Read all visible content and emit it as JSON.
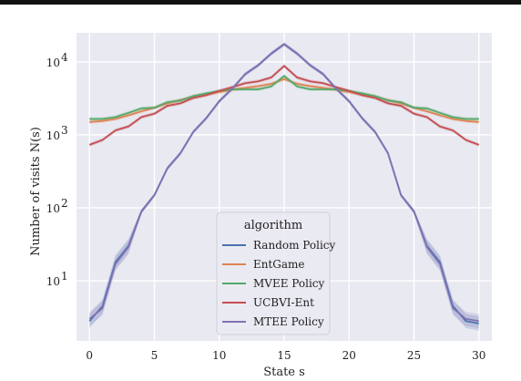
{
  "chart_data": {
    "type": "line",
    "xlabel": "State s",
    "ylabel": "Number of visits N(s)",
    "xlim": [
      -1,
      31
    ],
    "ylim": [
      1.5,
      25000
    ],
    "yscale": "log",
    "xticks": [
      0,
      5,
      10,
      15,
      20,
      25,
      30
    ],
    "yticks": [
      {
        "value": 10,
        "base": "10",
        "exp": "1"
      },
      {
        "value": 100,
        "base": "10",
        "exp": "2"
      },
      {
        "value": 1000,
        "base": "10",
        "exp": "3"
      },
      {
        "value": 10000,
        "base": "10",
        "exp": "4"
      }
    ],
    "grid": true,
    "background": "#e9e9f2",
    "legend": {
      "title": "algorithm",
      "placement": "lower-center"
    },
    "x": [
      0,
      1,
      2,
      3,
      4,
      5,
      6,
      7,
      8,
      9,
      10,
      11,
      12,
      13,
      14,
      15,
      16,
      17,
      18,
      19,
      20,
      21,
      22,
      23,
      24,
      25,
      26,
      27,
      28,
      29,
      30
    ],
    "series": [
      {
        "name": "Random Policy",
        "color": "#4c72b0",
        "values": [
          2.8,
          4.5,
          18,
          30,
          90,
          150,
          350,
          560,
          1100,
          1700,
          2900,
          4300,
          6800,
          9000,
          13000,
          17500,
          13000,
          9000,
          6800,
          4300,
          2900,
          1700,
          1100,
          560,
          150,
          90,
          30,
          18,
          4.5,
          2.8,
          2.6
        ]
      },
      {
        "name": "EntGame",
        "color": "#dd8452",
        "values": [
          1500,
          1550,
          1650,
          1850,
          2100,
          2350,
          2700,
          3000,
          3300,
          3550,
          3850,
          4150,
          4400,
          4650,
          5000,
          5800,
          5000,
          4650,
          4400,
          4150,
          3850,
          3550,
          3300,
          3000,
          2700,
          2350,
          2100,
          1850,
          1650,
          1550,
          1500
        ]
      },
      {
        "name": "MVEE Policy",
        "color": "#55a868",
        "values": [
          1650,
          1650,
          1750,
          2000,
          2300,
          2350,
          2800,
          2950,
          3400,
          3700,
          4000,
          4200,
          4200,
          4200,
          4600,
          6400,
          4600,
          4200,
          4200,
          4200,
          4000,
          3700,
          3400,
          2950,
          2800,
          2350,
          2300,
          2000,
          1750,
          1650,
          1650
        ]
      },
      {
        "name": "UCBVI-Ent",
        "color": "#c44e52",
        "values": [
          730,
          850,
          1150,
          1300,
          1750,
          1950,
          2500,
          2700,
          3200,
          3500,
          4000,
          4500,
          5100,
          5400,
          6100,
          8800,
          6100,
          5400,
          5100,
          4500,
          4000,
          3500,
          3200,
          2700,
          2500,
          1950,
          1750,
          1300,
          1150,
          850,
          730
        ]
      },
      {
        "name": "MTEE Policy",
        "color": "#8172b3",
        "values": [
          3.0,
          4.2,
          17,
          29,
          88,
          148,
          345,
          555,
          1095,
          1690,
          2880,
          4280,
          6780,
          8980,
          12900,
          17400,
          12900,
          8980,
          6780,
          4280,
          2880,
          1690,
          1095,
          555,
          148,
          88,
          29,
          17,
          4.2,
          3.0,
          2.8
        ]
      }
    ]
  }
}
